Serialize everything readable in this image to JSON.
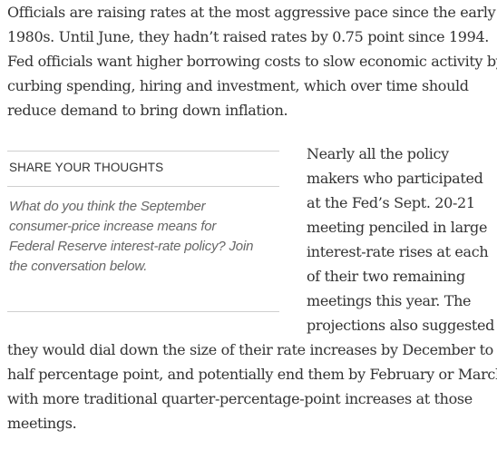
{
  "article": {
    "paragraph1_lines": [
      "Officials are raising rates at the most aggressive pace since the early",
      "1980s. Until June, they hadn’t raised rates by 0.75 point since 1994.",
      "Fed officials want higher borrowing costs to slow economic activity by",
      "curbing spending, hiring and investment, which over time should",
      "reduce demand to bring down inflation."
    ],
    "paragraph2_lines": [
      "Nearly all the policy",
      "makers who participated",
      "at the Fed’s Sept. 20-21",
      "meeting penciled in large",
      "interest-rate rises at each",
      "of their two remaining",
      "meetings this year. The",
      "projections also suggested",
      "they would dial down the size of their rate increases by December to a",
      "half percentage point, and potentially end them by February or March",
      "with more traditional quarter-percentage-point increases at those",
      "meetings."
    ]
  },
  "sidebar": {
    "title": "SHARE YOUR THOUGHTS",
    "body_lines": [
      "What do you think the September",
      "consumer-price increase means for",
      "Federal Reserve interest-rate policy? Join",
      "the conversation below."
    ]
  }
}
